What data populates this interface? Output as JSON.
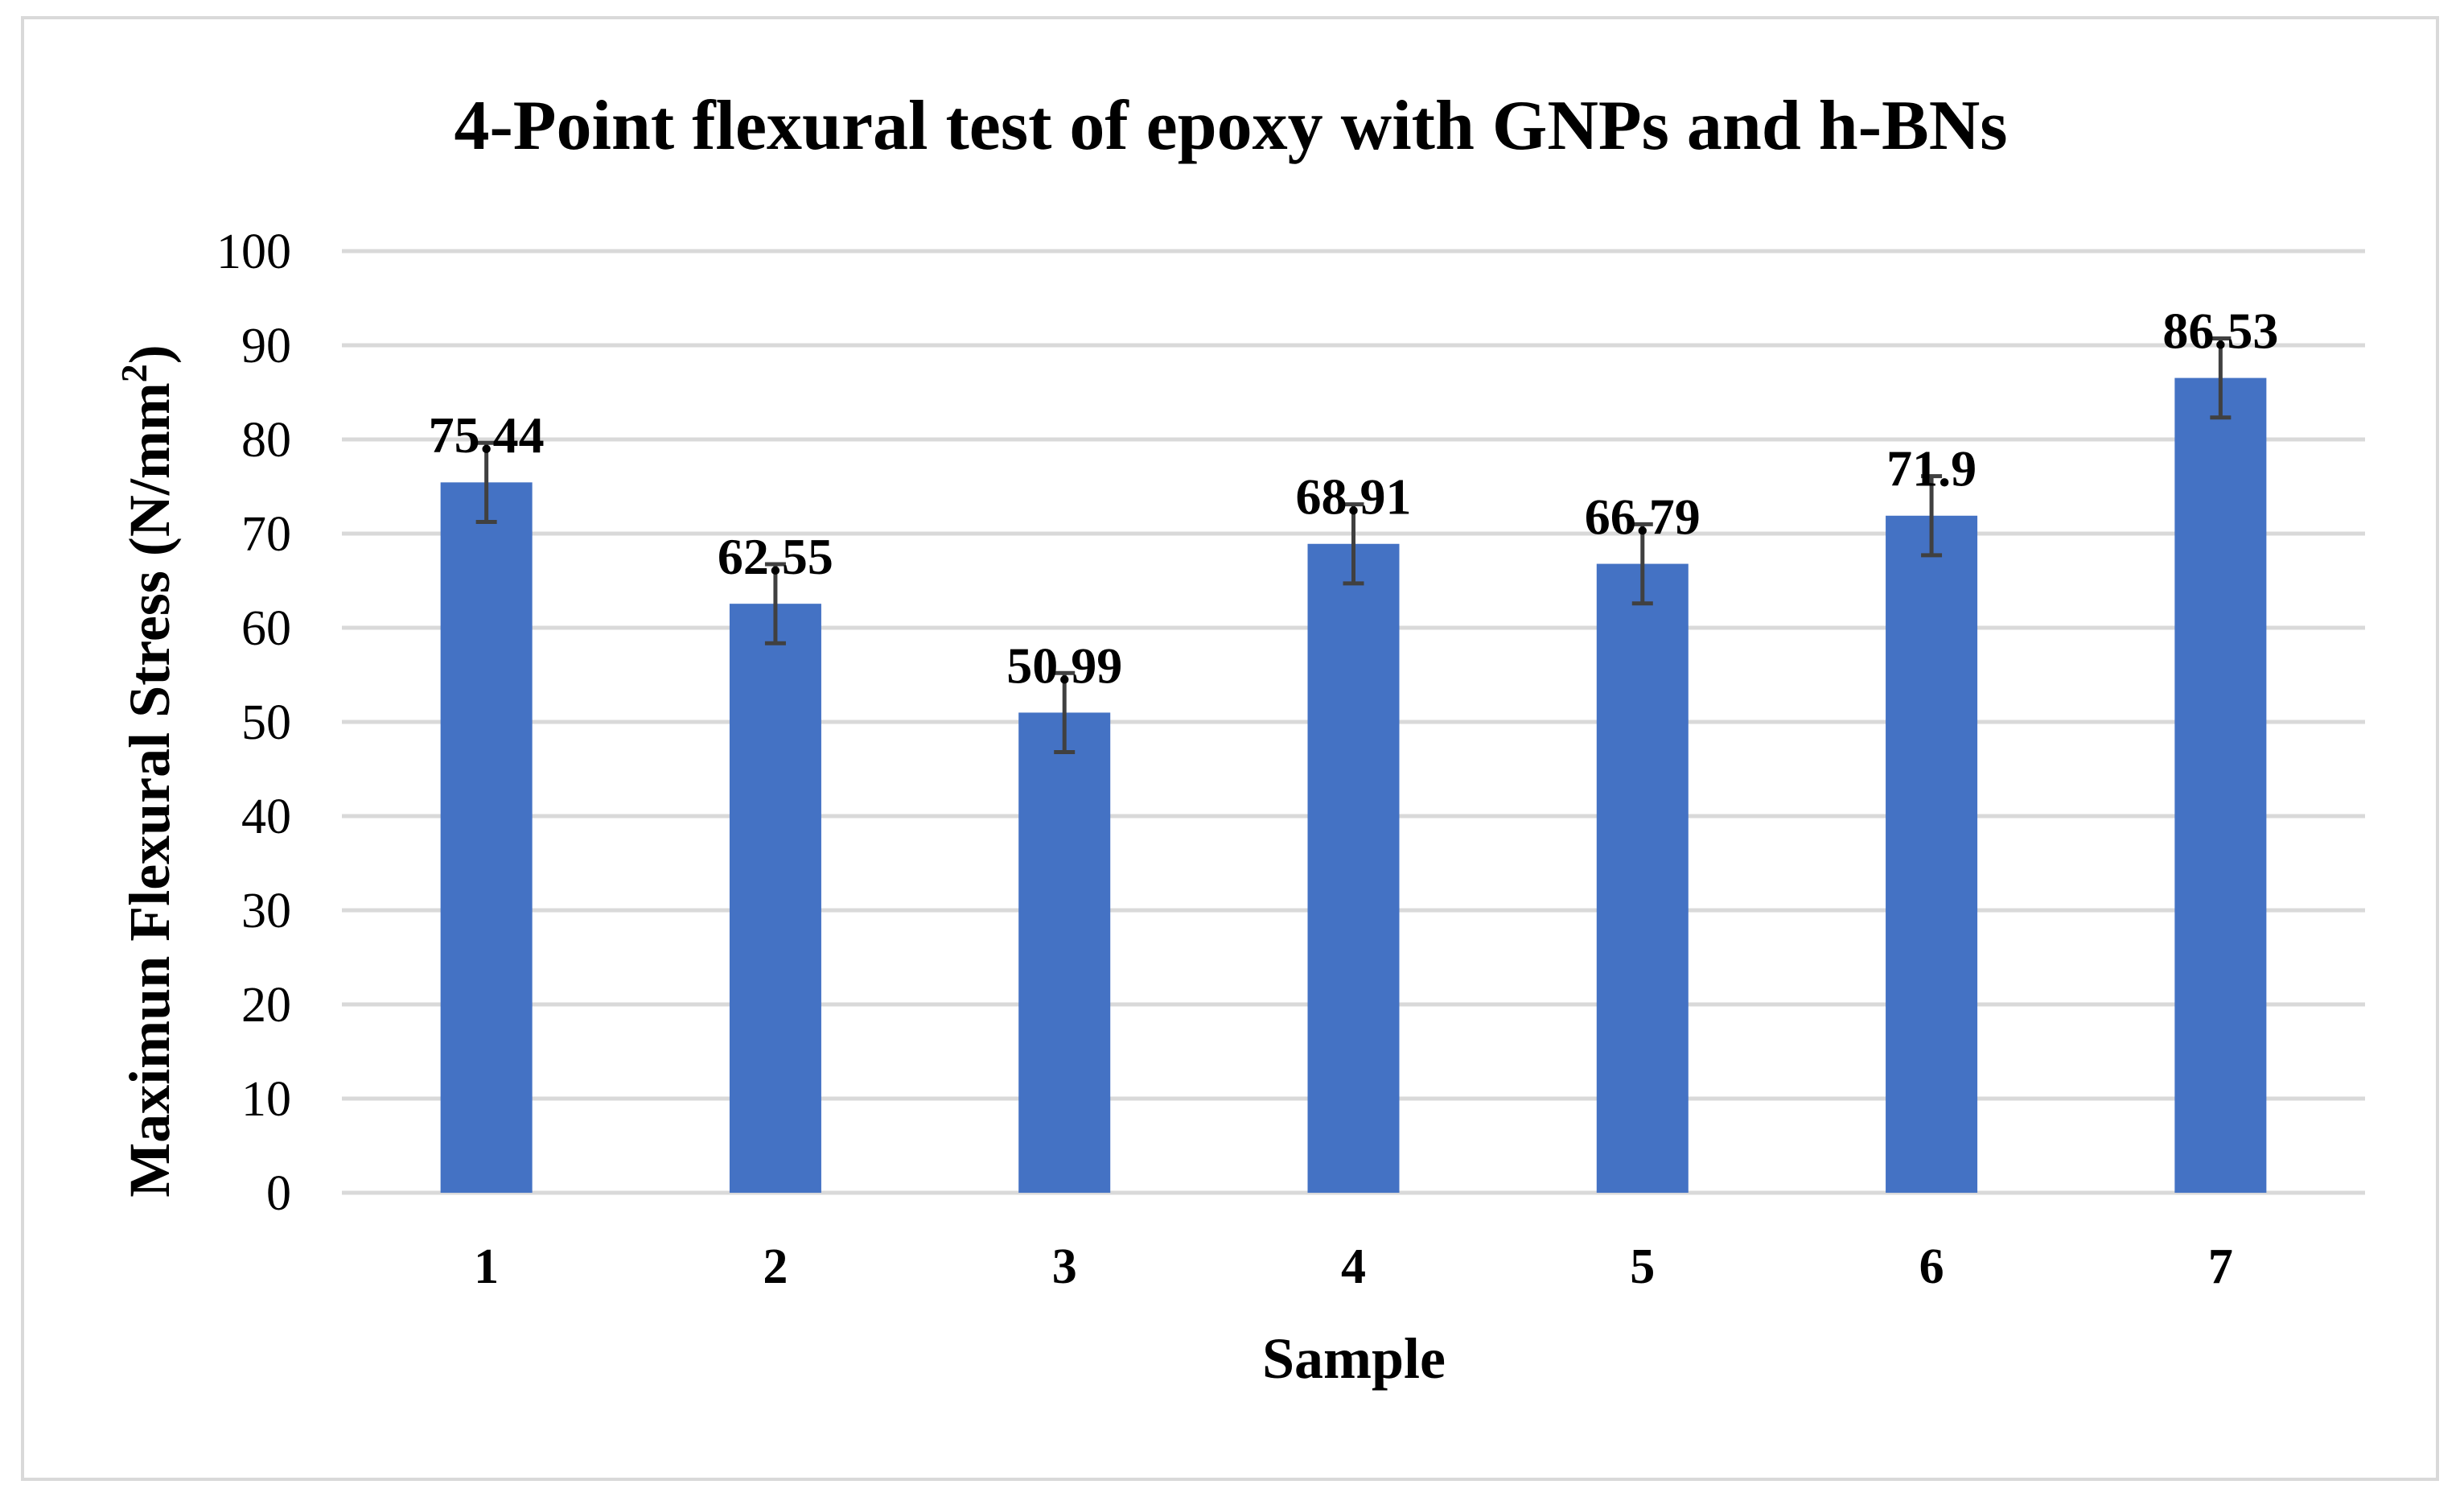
{
  "chart_data": {
    "type": "bar",
    "title": "4-Point flexural test of epoxy with GNPs and h-BNs",
    "xlabel": "Sample",
    "ylabel_main": "Maximun Flexural Stress (N/mm",
    "ylabel_sup": "2",
    "ylabel_tail": ")",
    "categories": [
      "1",
      "2",
      "3",
      "4",
      "5",
      "6",
      "7"
    ],
    "values": [
      75.44,
      62.55,
      50.99,
      68.91,
      66.79,
      71.9,
      86.53
    ],
    "data_labels": [
      "75.44",
      "62.55",
      "50.99",
      "68.91",
      "66.79",
      "71.9",
      "86.53"
    ],
    "error": [
      4.2,
      4.2,
      4.2,
      4.2,
      4.2,
      4.2,
      4.2
    ],
    "ylim": [
      0,
      100
    ],
    "yticks": [
      "0",
      "10",
      "20",
      "30",
      "40",
      "50",
      "60",
      "70",
      "80",
      "90",
      "100"
    ],
    "grid": true,
    "legend": "none",
    "colors": {
      "bar": "#4472c4",
      "grid": "#d9d9d9",
      "error_bar": "#404040",
      "frame": "#d9d9d9"
    }
  }
}
